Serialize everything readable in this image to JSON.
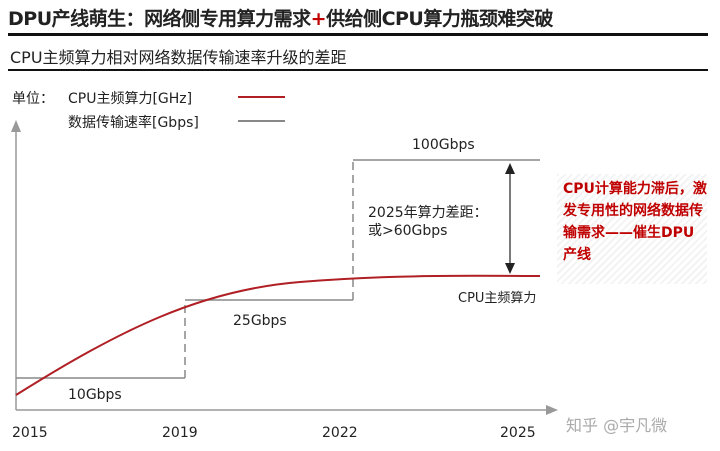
{
  "title_part1": "DPU产线萌生：网络侧专用算力需求",
  "title_plus": "+",
  "title_part2": "供给侧CPU算力瓶颈难突破",
  "subtitle": "CPU主频算力相对网络数据传输速率升级的差距",
  "watermark": "知乎 @宇凡微",
  "chart_data": {
    "type": "line",
    "legend": {
      "prefix": "单位：",
      "placement": "top-left"
    },
    "x_ticks": [
      "2015",
      "2019",
      "2022",
      "2025"
    ],
    "series": [
      {
        "name": "CPU主频算力[GHz]",
        "color": "#b01f24",
        "style": "smooth curve rising then flattening",
        "end_label": "CPU主频算力"
      },
      {
        "name": "数据传输速率[Gbps]",
        "color": "#888888",
        "style": "step",
        "steps": [
          {
            "from": 2015,
            "to": 2019,
            "value": 10,
            "label": "10Gbps"
          },
          {
            "from": 2019,
            "to": 2022,
            "value": 25,
            "label": "25Gbps"
          },
          {
            "from": 2022,
            "to": 2025,
            "value": 100,
            "label": "100Gbps"
          }
        ]
      }
    ],
    "annotations": {
      "gap_line1": "2025年算力差距：",
      "gap_line2": "或>60Gbps",
      "callout": "CPU计算能力滞后，激发专用性的网络数据传输需求——催生DPU产线"
    }
  }
}
